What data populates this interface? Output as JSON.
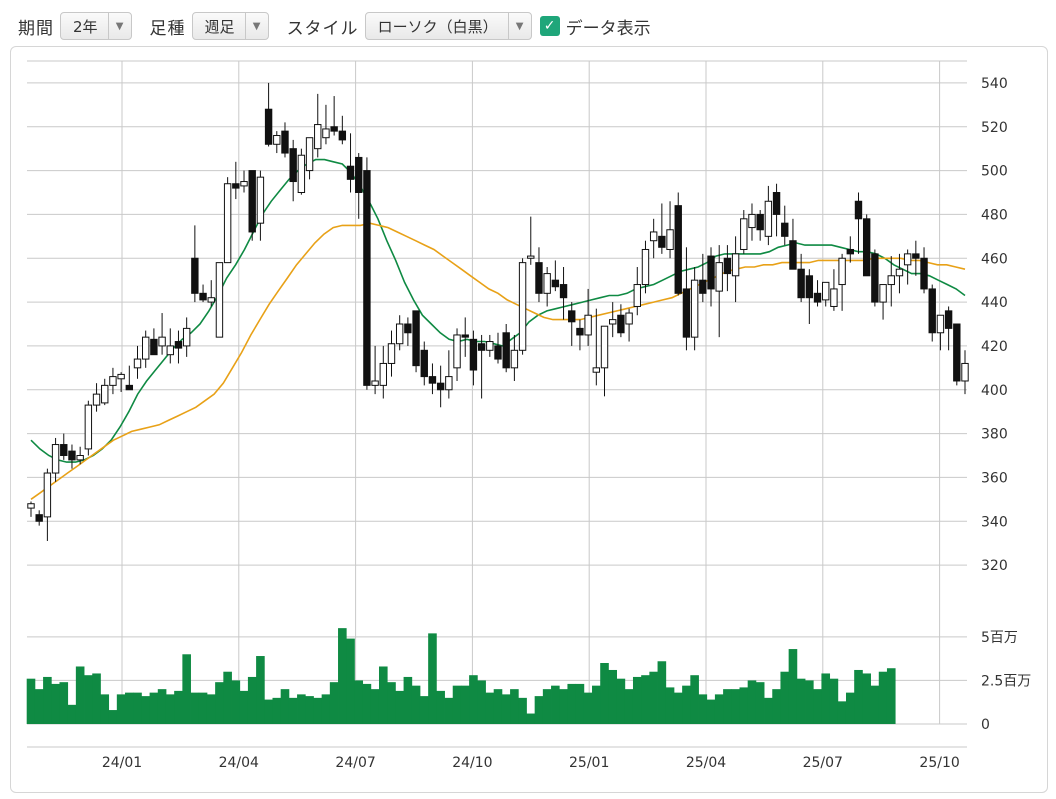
{
  "toolbar": {
    "period_label": "期間",
    "period_value": "2年",
    "freq_label": "足種",
    "freq_value": "週足",
    "style_label": "スタイル",
    "style_value": "ローソク（白黒）",
    "show_data_label": "データ表示",
    "show_data_checked": true
  },
  "chart_data": {
    "type": "candlestick",
    "x_tick_labels": [
      "24/01",
      "24/04",
      "24/07",
      "24/10",
      "25/01",
      "25/04",
      "25/07",
      "25/10"
    ],
    "y_ticks": [
      320,
      340,
      360,
      380,
      400,
      420,
      440,
      460,
      480,
      500,
      520,
      540
    ],
    "ylim": [
      310,
      550
    ],
    "volume_ticks": [
      "0",
      "2.5百万",
      "5百万"
    ],
    "volume_max": 7,
    "grid": true,
    "series": [
      {
        "name": "",
        "kind": "ohlc",
        "values": [
          [
            346,
            349,
            342,
            348
          ],
          [
            343,
            345,
            338,
            340
          ],
          [
            342,
            364,
            331,
            362
          ],
          [
            362,
            378,
            358,
            375
          ],
          [
            375,
            380,
            368,
            370
          ],
          [
            372,
            375,
            364,
            368
          ],
          [
            368,
            374,
            366,
            370
          ],
          [
            373,
            395,
            370,
            393
          ],
          [
            393,
            403,
            390,
            398
          ],
          [
            394,
            405,
            393,
            402
          ],
          [
            402,
            410,
            398,
            406
          ],
          [
            405,
            408,
            399,
            407
          ],
          [
            402,
            411,
            400,
            400
          ],
          [
            410,
            420,
            405,
            414
          ],
          [
            414,
            427,
            410,
            424
          ],
          [
            423,
            428,
            418,
            416
          ],
          [
            420,
            435,
            416,
            424
          ],
          [
            416,
            428,
            412,
            420
          ],
          [
            422,
            427,
            412,
            419
          ],
          [
            420,
            433,
            415,
            428
          ],
          [
            460,
            475,
            440,
            444
          ],
          [
            444,
            448,
            440,
            441
          ],
          [
            440,
            450,
            438,
            442
          ],
          [
            424,
            458,
            440,
            458
          ],
          [
            458,
            497,
            458,
            494
          ],
          [
            494,
            504,
            487,
            492
          ],
          [
            493,
            500,
            490,
            495
          ],
          [
            500,
            500,
            468,
            472
          ],
          [
            476,
            500,
            468,
            497
          ],
          [
            528,
            540,
            511,
            512
          ],
          [
            512,
            518,
            508,
            516
          ],
          [
            518,
            522,
            506,
            508
          ],
          [
            510,
            514,
            486,
            495
          ],
          [
            490,
            510,
            489,
            507
          ],
          [
            500,
            514,
            496,
            515
          ],
          [
            510,
            535,
            506,
            521
          ],
          [
            515,
            530,
            512,
            519
          ],
          [
            520,
            534,
            516,
            518
          ],
          [
            518,
            525,
            512,
            514
          ],
          [
            502,
            517,
            490,
            496
          ],
          [
            506,
            508,
            478,
            490
          ],
          [
            500,
            506,
            400,
            402
          ],
          [
            402,
            420,
            398,
            404
          ],
          [
            402,
            420,
            396,
            412
          ],
          [
            412,
            427,
            406,
            421
          ],
          [
            421,
            434,
            418,
            430
          ],
          [
            430,
            433,
            420,
            426
          ],
          [
            436,
            434,
            408,
            411
          ],
          [
            418,
            422,
            402,
            406
          ],
          [
            406,
            412,
            398,
            403
          ],
          [
            403,
            411,
            392,
            400
          ],
          [
            400,
            418,
            396,
            406
          ],
          [
            410,
            428,
            404,
            425
          ],
          [
            425,
            433,
            415,
            424
          ],
          [
            423,
            427,
            402,
            409
          ],
          [
            421,
            425,
            396,
            418
          ],
          [
            418,
            425,
            415,
            422
          ],
          [
            420,
            426,
            412,
            414
          ],
          [
            426,
            430,
            408,
            410
          ],
          [
            410,
            425,
            404,
            418
          ],
          [
            418,
            460,
            416,
            458
          ],
          [
            460,
            479,
            457,
            461
          ],
          [
            458,
            465,
            440,
            444
          ],
          [
            444,
            456,
            438,
            453
          ],
          [
            450,
            459,
            445,
            447
          ],
          [
            448,
            456,
            432,
            442
          ],
          [
            436,
            440,
            420,
            431
          ],
          [
            428,
            432,
            418,
            425
          ],
          [
            425,
            446,
            420,
            434
          ],
          [
            408,
            437,
            402,
            410
          ],
          [
            410,
            428,
            397,
            429
          ],
          [
            430,
            440,
            424,
            432
          ],
          [
            434,
            439,
            424,
            426
          ],
          [
            430,
            437,
            422,
            435
          ],
          [
            438,
            456,
            434,
            448
          ],
          [
            448,
            468,
            444,
            464
          ],
          [
            468,
            478,
            460,
            472
          ],
          [
            470,
            485,
            462,
            465
          ],
          [
            464,
            486,
            460,
            473
          ],
          [
            484,
            490,
            443,
            444
          ],
          [
            446,
            465,
            418,
            424
          ],
          [
            424,
            456,
            418,
            450
          ],
          [
            450,
            462,
            440,
            444
          ],
          [
            461,
            465,
            438,
            446
          ],
          [
            445,
            466,
            424,
            458
          ],
          [
            460,
            466,
            445,
            453
          ],
          [
            452,
            470,
            440,
            462
          ],
          [
            464,
            482,
            462,
            478
          ],
          [
            474,
            485,
            468,
            480
          ],
          [
            480,
            482,
            468,
            473
          ],
          [
            470,
            493,
            466,
            486
          ],
          [
            490,
            494,
            470,
            480
          ],
          [
            476,
            484,
            466,
            470
          ],
          [
            468,
            478,
            458,
            455
          ],
          [
            455,
            462,
            440,
            442
          ],
          [
            452,
            455,
            430,
            442
          ],
          [
            444,
            450,
            438,
            440
          ],
          [
            441,
            447,
            438,
            449
          ],
          [
            438,
            455,
            436,
            446
          ],
          [
            448,
            462,
            436,
            460
          ],
          [
            464,
            470,
            458,
            462
          ],
          [
            486,
            490,
            462,
            478
          ],
          [
            478,
            480,
            455,
            452
          ],
          [
            462,
            464,
            438,
            440
          ],
          [
            440,
            446,
            432,
            448
          ],
          [
            448,
            461,
            438,
            452
          ],
          [
            452,
            462,
            444,
            455
          ],
          [
            457,
            464,
            448,
            462
          ],
          [
            462,
            468,
            452,
            460
          ],
          [
            460,
            465,
            444,
            446
          ],
          [
            446,
            448,
            422,
            426
          ],
          [
            426,
            430,
            418,
            434
          ],
          [
            436,
            438,
            418,
            428
          ],
          [
            430,
            426,
            402,
            404
          ],
          [
            404,
            418,
            398,
            412
          ]
        ]
      },
      {
        "name": "",
        "kind": "line",
        "color": "#0f8a43",
        "values": [
          377,
          373,
          370,
          368,
          367,
          367,
          368,
          370,
          373,
          377,
          383,
          390,
          398,
          404,
          409,
          414,
          419,
          423,
          426,
          430,
          436,
          443,
          451,
          457,
          464,
          472,
          480,
          486,
          491,
          496,
          500,
          503,
          505,
          505,
          504,
          503,
          499,
          493,
          486,
          478,
          468,
          459,
          449,
          441,
          434,
          430,
          426,
          423,
          422,
          423,
          422,
          422,
          421,
          420,
          423,
          426,
          431,
          434,
          436,
          437,
          438,
          439,
          440,
          441,
          442,
          443,
          443,
          444,
          446,
          447,
          448,
          450,
          452,
          454,
          455,
          456,
          458,
          461,
          462,
          462,
          462,
          462,
          462,
          463,
          465,
          466,
          467,
          466,
          466,
          466,
          466,
          465,
          464,
          463,
          463,
          462,
          460,
          457,
          455,
          453,
          453,
          452,
          450,
          448,
          446,
          443
        ]
      },
      {
        "name": "",
        "kind": "line",
        "color": "#e8a117",
        "values": [
          350,
          353,
          356,
          359,
          362,
          365,
          368,
          371,
          374,
          377,
          379,
          381,
          382,
          383,
          384,
          386,
          388,
          390,
          392,
          395,
          398,
          403,
          410,
          417,
          425,
          432,
          439,
          445,
          451,
          457,
          462,
          467,
          471,
          474,
          475,
          475,
          475,
          476,
          475,
          474,
          472,
          470,
          468,
          466,
          464,
          461,
          458,
          455,
          452,
          449,
          446,
          444,
          441,
          439,
          437,
          435,
          433,
          432,
          432,
          432,
          432,
          433,
          434,
          435,
          436,
          437,
          438,
          439,
          440,
          441,
          442,
          444,
          446,
          448,
          450,
          452,
          454,
          455,
          456,
          456,
          457,
          457,
          458,
          458,
          458,
          458,
          459,
          459,
          459,
          459,
          459,
          459,
          460,
          460,
          460,
          460,
          459,
          459,
          458,
          457,
          457,
          456,
          455
        ]
      },
      {
        "name": "",
        "kind": "volume",
        "color": "#0f8a43",
        "values": [
          2.6,
          2.0,
          2.7,
          2.3,
          2.4,
          1.1,
          3.3,
          2.8,
          2.9,
          1.7,
          0.8,
          1.7,
          1.8,
          1.8,
          1.6,
          1.8,
          2.0,
          1.7,
          1.9,
          4.0,
          1.8,
          1.8,
          1.7,
          2.4,
          3.0,
          2.5,
          1.9,
          2.7,
          3.9,
          1.4,
          1.5,
          2.0,
          1.5,
          1.7,
          1.6,
          1.5,
          1.7,
          2.4,
          5.5,
          4.9,
          2.5,
          2.3,
          2.0,
          3.3,
          2.4,
          1.9,
          2.7,
          2.2,
          1.6,
          5.2,
          1.9,
          1.5,
          2.2,
          2.2,
          2.8,
          2.5,
          1.8,
          2.0,
          1.7,
          2.0,
          1.5,
          0.6,
          1.6,
          2.0,
          2.2,
          2.0,
          2.3,
          2.3,
          1.8,
          2.2,
          3.5,
          3.1,
          2.6,
          2.0,
          2.7,
          2.8,
          3.0,
          3.6,
          2.1,
          1.8,
          2.2,
          2.8,
          1.7,
          1.4,
          1.7,
          2.0,
          2.0,
          2.1,
          2.5,
          2.4,
          1.5,
          2.0,
          3.0,
          4.3,
          2.6,
          2.5,
          2.0,
          2.9,
          2.6,
          1.3,
          1.8,
          3.1,
          2.9,
          2.2,
          3.0,
          3.2
        ]
      }
    ]
  }
}
